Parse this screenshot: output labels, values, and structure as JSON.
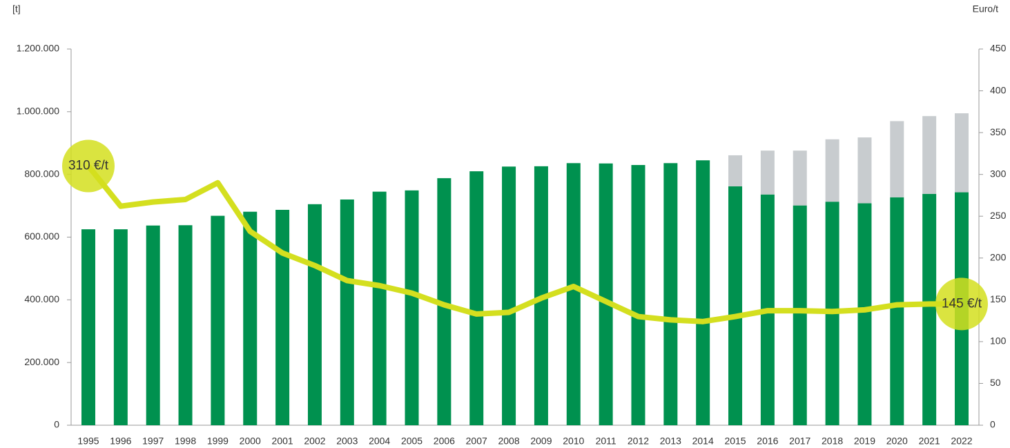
{
  "chart_data": {
    "type": "bar-line",
    "ylabel": "[t]",
    "y2label": "Euro/t",
    "categories": [
      "1995",
      "1996",
      "1997",
      "1998",
      "1999",
      "2000",
      "2001",
      "2002",
      "2003",
      "2004",
      "2005",
      "2006",
      "2007",
      "2008",
      "2009",
      "2010",
      "2011",
      "2012",
      "2013",
      "2014",
      "2015",
      "2016",
      "2017",
      "2018",
      "2019",
      "2020",
      "2021",
      "2022"
    ],
    "series": [
      {
        "type": "bar",
        "color": "#00914f",
        "values": [
          625000,
          625000,
          637000,
          638000,
          668000,
          681000,
          687000,
          705000,
          720000,
          745000,
          749000,
          788000,
          810000,
          825000,
          826000,
          836000,
          835000,
          830000,
          836000,
          845000,
          762000,
          736000,
          701000,
          713000,
          708000,
          727000,
          738000,
          743000
        ]
      },
      {
        "type": "bar",
        "color": "#c8cccf",
        "values": [
          null,
          null,
          null,
          null,
          null,
          null,
          null,
          null,
          null,
          null,
          null,
          null,
          null,
          null,
          null,
          null,
          null,
          null,
          null,
          null,
          99000,
          140000,
          175000,
          199000,
          210000,
          243000,
          248000,
          252000
        ]
      },
      {
        "type": "line",
        "axis": "y2",
        "color": "#d4df1f",
        "values": [
          310,
          262,
          267,
          270,
          290,
          232,
          206,
          191,
          173,
          167,
          158,
          144,
          133,
          135,
          152,
          166,
          148,
          130,
          126,
          124,
          130,
          137,
          137,
          136,
          138,
          144,
          145,
          145
        ],
        "value_labels": [
          "310 €/t",
          null,
          null,
          null,
          null,
          null,
          null,
          null,
          null,
          null,
          null,
          null,
          null,
          null,
          null,
          null,
          null,
          null,
          null,
          null,
          null,
          null,
          null,
          null,
          null,
          null,
          null,
          "145 €/t"
        ]
      }
    ],
    "ylim": [
      0,
      1200000
    ],
    "yticks": [
      0,
      {
        "value": 200000,
        "label": "200.000"
      },
      {
        "value": 400000,
        "label": "400.000"
      },
      {
        "value": 600000,
        "label": "600.000"
      },
      {
        "value": 800000,
        "label": "800.000"
      },
      {
        "value": 1000000,
        "label": "1.000.000"
      },
      {
        "value": 1200000,
        "label": "1.200.000"
      }
    ],
    "y2lim": [
      0,
      450
    ],
    "y2ticks": [
      0,
      50,
      100,
      150,
      200,
      250,
      300,
      350,
      400,
      450
    ],
    "grid": false
  }
}
